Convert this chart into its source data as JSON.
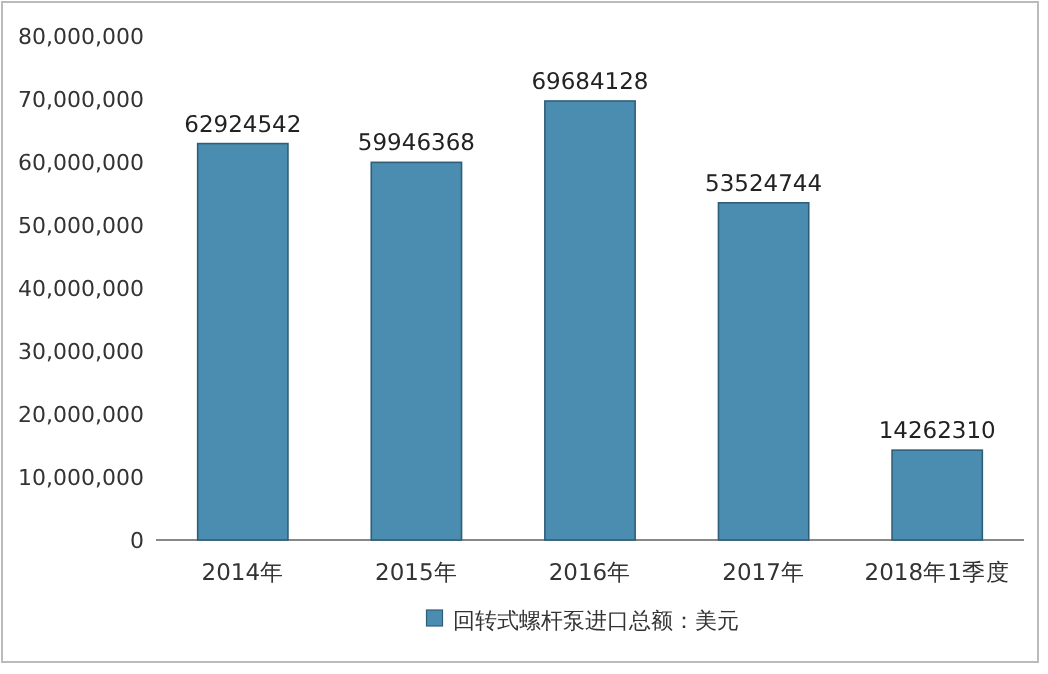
{
  "chart_data": {
    "type": "bar",
    "categories": [
      "2014年",
      "2015年",
      "2016年",
      "2017年",
      "2018年1季度"
    ],
    "series": [
      {
        "name": "回转式螺杆泵进口总额：美元",
        "color": "#4a8db0",
        "values": [
          62924542,
          59946368,
          69684128,
          53524744,
          14262310
        ]
      }
    ],
    "ylim": [
      0,
      80000000
    ],
    "yticks": [
      0,
      {
        "value": 10000000,
        "label": "10,000,000"
      },
      {
        "value": 20000000,
        "label": "20,000,000"
      },
      {
        "value": 30000000,
        "label": "30,000,000"
      },
      {
        "value": 40000000,
        "label": "40,000,000"
      },
      {
        "value": 50000000,
        "label": "50,000,000"
      },
      {
        "value": 60000000,
        "label": "60,000,000"
      },
      {
        "value": 70000000,
        "label": "70,000,000"
      },
      {
        "value": 80000000,
        "label": "80,000,000"
      }
    ],
    "data_labels": true,
    "legend": "bottom",
    "grid": false
  }
}
